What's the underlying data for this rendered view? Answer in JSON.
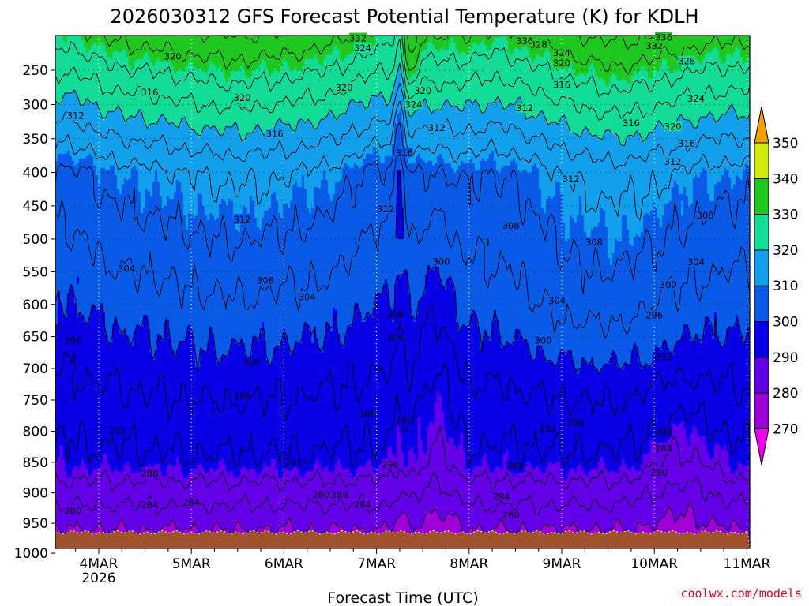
{
  "chart_data": {
    "type": "contour",
    "title": "2026030312 GFS Forecast Potential Temperature (K) for KDLH",
    "xlabel": "Forecast Time (UTC)",
    "ylabel": "",
    "credit": "coolwx.com/models",
    "x_ticks": [
      "4MAR",
      "5MAR",
      "6MAR",
      "7MAR",
      "8MAR",
      "9MAR",
      "10MAR",
      "11MAR"
    ],
    "x_year": "2026",
    "x_range_days_from_4MAR": [
      -0.47,
      7.0
    ],
    "y_ticks": [
      250,
      300,
      350,
      400,
      450,
      500,
      550,
      600,
      650,
      700,
      750,
      800,
      850,
      900,
      950,
      1000
    ],
    "y_range_hpa": [
      200,
      1000
    ],
    "colorbar": {
      "levels": [
        270,
        280,
        290,
        300,
        310,
        320,
        330,
        340,
        350
      ],
      "colors": [
        "#f000f0",
        "#a000d8",
        "#6400e8",
        "#0a00e6",
        "#0a5ae8",
        "#12a0ec",
        "#12dc96",
        "#1ec81e",
        "#d2eb0a",
        "#f0f000",
        "#f0a000"
      ],
      "extend": "both"
    },
    "ground_color": "#a0522d",
    "contour_interval_K": 4,
    "contour_labels": [
      {
        "x_day": -0.28,
        "hpa": 930,
        "value": "280"
      },
      {
        "x_day": 0.55,
        "hpa": 920,
        "value": "284"
      },
      {
        "x_day": 0.55,
        "hpa": 868,
        "value": "288"
      },
      {
        "x_day": 0.2,
        "hpa": 800,
        "value": "292"
      },
      {
        "x_day": -0.28,
        "hpa": 656,
        "value": "296"
      },
      {
        "x_day": 0.3,
        "hpa": 545,
        "value": "304"
      },
      {
        "x_day": -0.25,
        "hpa": 316,
        "value": "312"
      },
      {
        "x_day": 0.55,
        "hpa": 282,
        "value": "316"
      },
      {
        "x_day": 0.8,
        "hpa": 230,
        "value": "320"
      },
      {
        "x_day": 2.4,
        "hpa": 903,
        "value": "280"
      },
      {
        "x_day": 1.0,
        "hpa": 916,
        "value": "284"
      },
      {
        "x_day": 2.1,
        "hpa": 851,
        "value": "292"
      },
      {
        "x_day": 1.55,
        "hpa": 744,
        "value": "296"
      },
      {
        "x_day": 1.65,
        "hpa": 690,
        "value": "300"
      },
      {
        "x_day": 1.8,
        "hpa": 563,
        "value": "308"
      },
      {
        "x_day": 2.25,
        "hpa": 589,
        "value": "304"
      },
      {
        "x_day": 1.55,
        "hpa": 470,
        "value": "312"
      },
      {
        "x_day": 1.9,
        "hpa": 343,
        "value": "316"
      },
      {
        "x_day": 1.55,
        "hpa": 290,
        "value": "320"
      },
      {
        "x_day": 2.65,
        "hpa": 275,
        "value": "320"
      },
      {
        "x_day": 2.6,
        "hpa": 903,
        "value": "288"
      },
      {
        "x_day": 2.85,
        "hpa": 919,
        "value": "284"
      },
      {
        "x_day": 2.9,
        "hpa": 772,
        "value": "300"
      },
      {
        "x_day": 3.2,
        "hpa": 652,
        "value": "304"
      },
      {
        "x_day": 3.2,
        "hpa": 616,
        "value": "308"
      },
      {
        "x_day": 3.1,
        "hpa": 455,
        "value": "312"
      },
      {
        "x_day": 3.3,
        "hpa": 371,
        "value": "316"
      },
      {
        "x_day": 3.15,
        "hpa": 854,
        "value": "296"
      },
      {
        "x_day": 3.5,
        "hpa": 280,
        "value": "320"
      },
      {
        "x_day": 3.4,
        "hpa": 300,
        "value": "324"
      },
      {
        "x_day": 3.65,
        "hpa": 334,
        "value": "312"
      },
      {
        "x_day": 3.7,
        "hpa": 534,
        "value": "300"
      },
      {
        "x_day": 3.3,
        "hpa": 782,
        "value": "292"
      },
      {
        "x_day": 4.35,
        "hpa": 906,
        "value": "284"
      },
      {
        "x_day": 4.45,
        "hpa": 937,
        "value": "280"
      },
      {
        "x_day": 4.5,
        "hpa": 856,
        "value": "288"
      },
      {
        "x_day": 4.85,
        "hpa": 796,
        "value": "292"
      },
      {
        "x_day": 5.15,
        "hpa": 786,
        "value": "296"
      },
      {
        "x_day": 4.8,
        "hpa": 656,
        "value": "300"
      },
      {
        "x_day": 4.95,
        "hpa": 594,
        "value": "304"
      },
      {
        "x_day": 4.45,
        "hpa": 480,
        "value": "308"
      },
      {
        "x_day": 5.35,
        "hpa": 505,
        "value": "308"
      },
      {
        "x_day": 5.1,
        "hpa": 410,
        "value": "312"
      },
      {
        "x_day": 4.6,
        "hpa": 305,
        "value": "312"
      },
      {
        "x_day": 5.75,
        "hpa": 327,
        "value": "316"
      },
      {
        "x_day": 5.0,
        "hpa": 271,
        "value": "316"
      },
      {
        "x_day": 5.0,
        "hpa": 240,
        "value": "320"
      },
      {
        "x_day": 5.0,
        "hpa": 225,
        "value": "324"
      },
      {
        "x_day": 4.75,
        "hpa": 213,
        "value": "328"
      },
      {
        "x_day": 4.6,
        "hpa": 208,
        "value": "336"
      },
      {
        "x_day": 6.05,
        "hpa": 867,
        "value": "280"
      },
      {
        "x_day": 6.1,
        "hpa": 828,
        "value": "284"
      },
      {
        "x_day": 6.1,
        "hpa": 802,
        "value": "288"
      },
      {
        "x_day": 6.1,
        "hpa": 682,
        "value": "292"
      },
      {
        "x_day": 6.0,
        "hpa": 617,
        "value": "296"
      },
      {
        "x_day": 6.15,
        "hpa": 570,
        "value": "300"
      },
      {
        "x_day": 6.45,
        "hpa": 535,
        "value": "304"
      },
      {
        "x_day": 6.55,
        "hpa": 464,
        "value": "308"
      },
      {
        "x_day": 6.2,
        "hpa": 384,
        "value": "312"
      },
      {
        "x_day": 6.35,
        "hpa": 357,
        "value": "316"
      },
      {
        "x_day": 6.2,
        "hpa": 332,
        "value": "320"
      },
      {
        "x_day": 6.45,
        "hpa": 291,
        "value": "324"
      },
      {
        "x_day": 6.35,
        "hpa": 237,
        "value": "328"
      },
      {
        "x_day": 6.0,
        "hpa": 215,
        "value": "332"
      },
      {
        "x_day": 6.1,
        "hpa": 203,
        "value": "336"
      },
      {
        "x_day": 2.8,
        "hpa": 204,
        "value": "332"
      },
      {
        "x_day": 2.85,
        "hpa": 218,
        "value": "324"
      }
    ]
  }
}
